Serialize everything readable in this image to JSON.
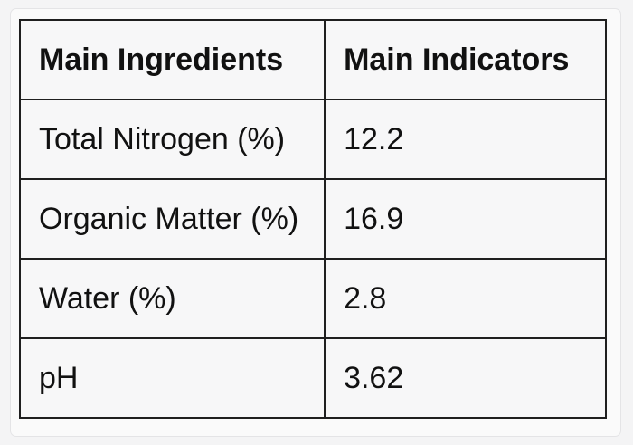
{
  "table": {
    "headers": [
      "Main Ingredients",
      "Main Indicators"
    ],
    "rows": [
      [
        "Total Nitrogen (%)",
        "12.2"
      ],
      [
        "Organic Matter (%)",
        "16.9"
      ],
      [
        "Water (%)",
        "2.8"
      ],
      [
        "pH",
        "3.62"
      ]
    ]
  }
}
